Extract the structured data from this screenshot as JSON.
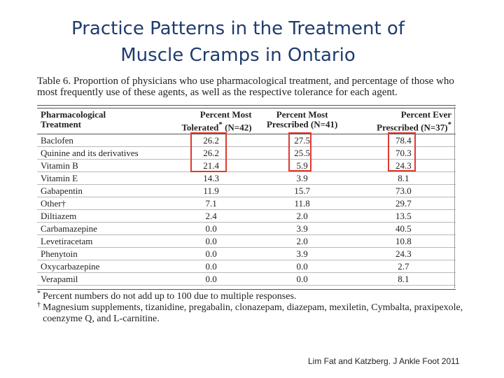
{
  "title": {
    "line1": "Practice Patterns in the Treatment of",
    "line2": "Muscle Cramps in Ontario"
  },
  "caption": "Table 6. Proportion of physicians who use pharmacological treatment, and percentage of those who most frequently use of these agents, as well as the respective tolerance for each agent.",
  "table": {
    "headers": [
      {
        "line1": "Pharmacological",
        "line2": "Treatment",
        "sup": ""
      },
      {
        "line1": "Percent Most",
        "line2": "Tolerated",
        "sup": "*",
        "tail": " (N=42)"
      },
      {
        "line1": "Percent Most",
        "line2": "Prescribed (N=41)",
        "sup": ""
      },
      {
        "line1": "Percent Ever",
        "line2": "Prescribed (N=37)",
        "sup": "*"
      }
    ],
    "rows": [
      {
        "treatment": "Baclofen",
        "tolerated": "26.2",
        "most_prescribed": "27.5",
        "ever_prescribed": "78.4"
      },
      {
        "treatment": "Quinine and its derivatives",
        "tolerated": "26.2",
        "most_prescribed": "25.5",
        "ever_prescribed": "70.3"
      },
      {
        "treatment": "Vitamin B",
        "tolerated": "21.4",
        "most_prescribed": "5.9",
        "ever_prescribed": "24.3"
      },
      {
        "treatment": "Vitamin E",
        "tolerated": "14.3",
        "most_prescribed": "3.9",
        "ever_prescribed": "8.1"
      },
      {
        "treatment": "Gabapentin",
        "tolerated": "11.9",
        "most_prescribed": "15.7",
        "ever_prescribed": "73.0"
      },
      {
        "treatment": "Other†",
        "tolerated": "7.1",
        "most_prescribed": "11.8",
        "ever_prescribed": "29.7"
      },
      {
        "treatment": "Diltiazem",
        "tolerated": "2.4",
        "most_prescribed": "2.0",
        "ever_prescribed": "13.5"
      },
      {
        "treatment": "Carbamazepine",
        "tolerated": "0.0",
        "most_prescribed": "3.9",
        "ever_prescribed": "40.5"
      },
      {
        "treatment": "Levetiracetam",
        "tolerated": "0.0",
        "most_prescribed": "2.0",
        "ever_prescribed": "10.8"
      },
      {
        "treatment": "Phenytoin",
        "tolerated": "0.0",
        "most_prescribed": "3.9",
        "ever_prescribed": "24.3"
      },
      {
        "treatment": "Oxycarbazepine",
        "tolerated": "0.0",
        "most_prescribed": "0.0",
        "ever_prescribed": "2.7"
      },
      {
        "treatment": "Verapamil",
        "tolerated": "0.0",
        "most_prescribed": "0.0",
        "ever_prescribed": "8.1"
      }
    ],
    "highlight_color": "#e03a2f"
  },
  "footnotes": [
    {
      "mark": "*",
      "text": "Percent numbers do not add up to 100 due to multiple responses."
    },
    {
      "mark": "†",
      "text": "Magnesium supplements, tizanidine, pregabalin, clonazepam, diazepam, mexiletin, Cymbalta, praxipexole, coenzyme Q, and L-carnitine."
    }
  ],
  "citation": "Lim Fat and Katzberg. J Ankle Foot 2011"
}
